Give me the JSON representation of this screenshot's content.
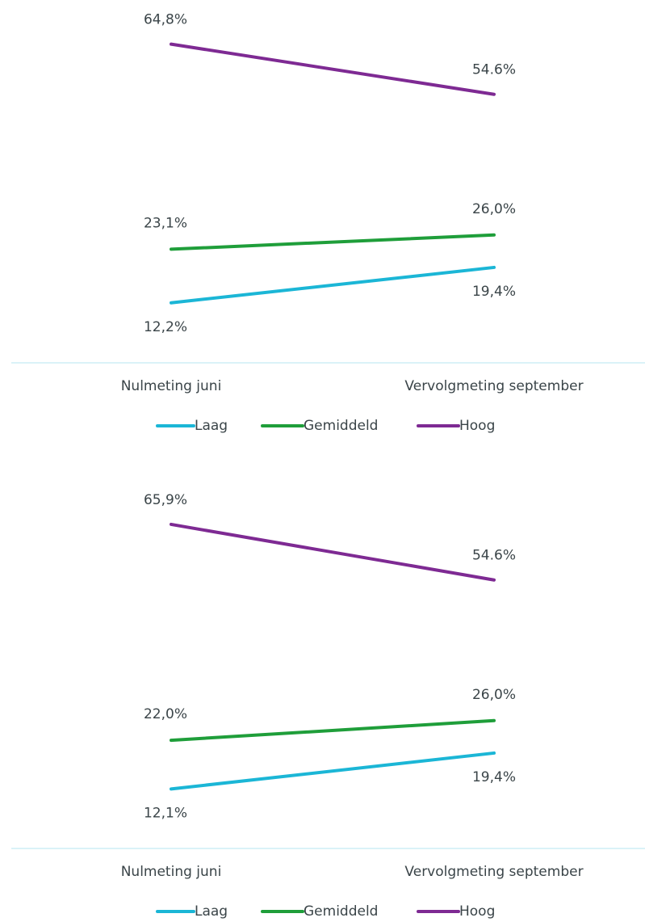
{
  "chart_data": [
    {
      "type": "line",
      "categories": [
        "Nulmeting juni",
        "Vervolgmeting september"
      ],
      "ylim": [
        0,
        70
      ],
      "series": [
        {
          "name": "Laag",
          "color": "#1bb6d6",
          "values": [
            12.2,
            19.4
          ],
          "value_labels": [
            "12,2%",
            "19,4%"
          ]
        },
        {
          "name": "Gemiddeld",
          "color": "#1f9e3a",
          "values": [
            23.1,
            26.0
          ],
          "value_labels": [
            "23,1%",
            "26,0%"
          ]
        },
        {
          "name": "Hoog",
          "color": "#7e2a93",
          "values": [
            64.8,
            54.6
          ],
          "value_labels": [
            "64,8%",
            "54.6%"
          ]
        }
      ]
    },
    {
      "type": "line",
      "categories": [
        "Nulmeting juni",
        "Vervolgmeting september"
      ],
      "ylim": [
        0,
        70
      ],
      "series": [
        {
          "name": "Laag",
          "color": "#1bb6d6",
          "values": [
            12.1,
            19.4
          ],
          "value_labels": [
            "12,1%",
            "19,4%"
          ]
        },
        {
          "name": "Gemiddeld",
          "color": "#1f9e3a",
          "values": [
            22.0,
            26.0
          ],
          "value_labels": [
            "22,0%",
            "26,0%"
          ]
        },
        {
          "name": "Hoog",
          "color": "#7e2a93",
          "values": [
            65.9,
            54.6
          ],
          "value_labels": [
            "65,9%",
            "54.6%"
          ]
        }
      ]
    }
  ]
}
